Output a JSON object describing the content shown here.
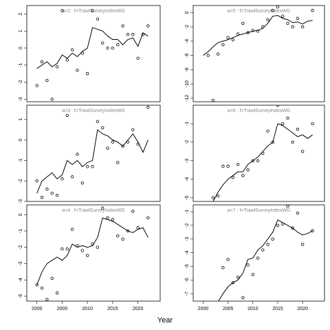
{
  "x_label": "Year",
  "chart_data": [
    {
      "type": "scatter",
      "title": "a=2 : f=TrawlSurveyIndexWG",
      "xlim": [
        1998,
        2024.4
      ],
      "ylim": [
        -3.15,
        2.5
      ],
      "yticks": [
        -3,
        -2,
        -1,
        0,
        1,
        2
      ],
      "grid": false,
      "points": {
        "x": [
          2000,
          2001,
          2002,
          2003,
          2004,
          2005,
          2006,
          2007,
          2008,
          2009,
          2010,
          2011,
          2012,
          2013,
          2014,
          2015,
          2016,
          2017,
          2018,
          2019,
          2020,
          2021,
          2022
        ],
        "values": [
          -2.2,
          -0.8,
          -1.9,
          -3.0,
          -1.1,
          2.2,
          -0.7,
          -0.1,
          -1.3,
          -0.3,
          -1.5,
          2.2,
          1.7,
          0.3,
          0.0,
          0.0,
          0.2,
          1.3,
          0.8,
          0.8,
          -0.6,
          0.8,
          1.3
        ]
      },
      "line": {
        "x": [
          2000,
          2001,
          2002,
          2003,
          2004,
          2005,
          2006,
          2007,
          2008,
          2009,
          2010,
          2011,
          2012,
          2013,
          2014,
          2015,
          2016,
          2017,
          2018,
          2019,
          2020,
          2021,
          2022
        ],
        "values": [
          -1.2,
          -1.0,
          -0.8,
          -1.1,
          -0.9,
          -0.4,
          -0.6,
          -0.3,
          -0.5,
          -0.2,
          0.0,
          1.2,
          1.1,
          1.0,
          0.7,
          0.5,
          0.5,
          0.2,
          0.5,
          0.6,
          0.1,
          0.9,
          0.7
        ]
      }
    },
    {
      "type": "scatter",
      "title": "a=5 : f=TrawlSurveyIndexWG",
      "xlim": [
        1998,
        2024.4
      ],
      "ylim": [
        -12.5,
        1
      ],
      "yticks": [
        -12,
        -10,
        -8,
        -6,
        -4,
        -2,
        0
      ],
      "grid": false,
      "points": {
        "x": [
          2001,
          2002,
          2003,
          2004,
          2005,
          2006,
          2007,
          2008,
          2009,
          2010,
          2011,
          2012,
          2013,
          2014,
          2015,
          2016,
          2017,
          2018,
          2019,
          2020,
          2022
        ],
        "values": [
          -6,
          -12.3,
          -5.8,
          -4.5,
          -3.5,
          -3.8,
          -3.0,
          -1.5,
          -2.8,
          -2.5,
          -2.6,
          -2.0,
          -1.0,
          0.3,
          0.8,
          -0.5,
          -1.5,
          -2.0,
          -0.8,
          -2.0,
          0.3
        ]
      },
      "line": {
        "x": [
          2000,
          2001,
          2002,
          2003,
          2004,
          2005,
          2006,
          2007,
          2008,
          2009,
          2010,
          2011,
          2012,
          2013,
          2014,
          2015,
          2016,
          2017,
          2018,
          2019,
          2020,
          2021,
          2022
        ],
        "values": [
          -6,
          -5.5,
          -4.8,
          -4.2,
          -4.0,
          -3.8,
          -3.5,
          -3.2,
          -3.0,
          -2.8,
          -2.6,
          -2.5,
          -2.2,
          -1.5,
          -0.5,
          -0.4,
          -0.8,
          -1.0,
          -1.4,
          -1.3,
          -1.6,
          -1.2,
          -1.1
        ]
      }
    },
    {
      "type": "scatter",
      "title": "a=3 : f=TrawlSurveyIndexWG",
      "xlim": [
        1998,
        2024.4
      ],
      "ylim": [
        -3.0,
        1.7
      ],
      "yticks": [
        -3,
        -2,
        -1,
        0,
        1
      ],
      "grid": false,
      "points": {
        "x": [
          2000,
          2001,
          2002,
          2003,
          2004,
          2005,
          2006,
          2007,
          2008,
          2009,
          2010,
          2011,
          2012,
          2013,
          2014,
          2015,
          2016,
          2017,
          2018,
          2019,
          2020,
          2022
        ],
        "values": [
          -2.0,
          -2.8,
          -2.4,
          -2.6,
          -2.7,
          -1.9,
          1.2,
          -1.8,
          -0.7,
          -2.1,
          -1.3,
          -1.3,
          0.9,
          0.6,
          -0.4,
          -0.1,
          -1.1,
          -0.3,
          -0.1,
          0.5,
          -0.2,
          1.6
        ]
      },
      "line": {
        "x": [
          2000,
          2001,
          2002,
          2003,
          2004,
          2005,
          2006,
          2007,
          2008,
          2009,
          2010,
          2011,
          2012,
          2013,
          2014,
          2015,
          2016,
          2017,
          2018,
          2019,
          2020,
          2021,
          2022
        ],
        "values": [
          -2.6,
          -2.0,
          -1.8,
          -1.6,
          -1.9,
          -1.7,
          -1.0,
          -1.2,
          -1.0,
          -1.3,
          -1.1,
          -1.0,
          0.5,
          0.3,
          0.2,
          0.0,
          -0.1,
          -0.3,
          0.0,
          0.3,
          -0.1,
          -0.6,
          0.0
        ]
      }
    },
    {
      "type": "scatter",
      "title": "a=6 : f=TrawlSurveyIndexWG",
      "xlim": [
        1998,
        2024.4
      ],
      "ylim": [
        -5.2,
        0
      ],
      "yticks": [
        -5,
        -4,
        -3,
        -2,
        -1
      ],
      "grid": false,
      "points": {
        "x": [
          2002,
          2003,
          2004,
          2005,
          2006,
          2007,
          2008,
          2009,
          2010,
          2011,
          2012,
          2013,
          2014,
          2015,
          2016,
          2017,
          2018,
          2019,
          2020,
          2022
        ],
        "values": [
          -5.0,
          -4.9,
          -3.3,
          -3.3,
          -3.9,
          -3.2,
          -3.8,
          -3.5,
          -3.0,
          -3.0,
          -2.6,
          -1.4,
          -2.0,
          0.0,
          -1.0,
          -0.7,
          -2.0,
          -1.3,
          -2.5,
          -1.0
        ]
      },
      "line": {
        "x": [
          2002,
          2003,
          2004,
          2005,
          2006,
          2007,
          2008,
          2009,
          2010,
          2011,
          2012,
          2013,
          2014,
          2015,
          2016,
          2017,
          2018,
          2019,
          2020,
          2021,
          2022
        ],
        "values": [
          -5.2,
          -4.7,
          -4.3,
          -4.0,
          -3.8,
          -3.6,
          -3.6,
          -3.2,
          -3.0,
          -2.8,
          -2.5,
          -2.2,
          -2.0,
          -1.0,
          -1.1,
          -1.3,
          -1.5,
          -1.7,
          -1.6,
          -1.8,
          -1.6
        ]
      }
    },
    {
      "type": "scatter",
      "title": "a=4 : f=TrawlSurveyIndexWG",
      "xlim": [
        1998,
        2024.4
      ],
      "ylim": [
        -5.3,
        0.6
      ],
      "yticks": [
        -5,
        -4,
        -3,
        -2,
        -1,
        0
      ],
      "xticks": [
        2000,
        2005,
        2010,
        2015,
        2020
      ],
      "grid": false,
      "points": {
        "x": [
          2000,
          2001,
          2002,
          2003,
          2004,
          2005,
          2006,
          2007,
          2008,
          2009,
          2010,
          2011,
          2012,
          2013,
          2014,
          2015,
          2016,
          2017,
          2018,
          2019,
          2020,
          2022
        ],
        "values": [
          -4.3,
          -4.5,
          -5.2,
          -3.9,
          -4.8,
          -2.1,
          -2.1,
          -0.9,
          -1.9,
          -2.2,
          -2.5,
          -1.8,
          -2.0,
          0.4,
          -0.2,
          -0.3,
          -1.3,
          -1.5,
          -1.0,
          0.2,
          -0.8,
          -0.2
        ]
      },
      "line": {
        "x": [
          2000,
          2001,
          2002,
          2003,
          2004,
          2005,
          2006,
          2007,
          2008,
          2009,
          2010,
          2011,
          2012,
          2013,
          2014,
          2015,
          2016,
          2017,
          2018,
          2019,
          2020,
          2021,
          2022
        ],
        "values": [
          -4.3,
          -3.5,
          -3.0,
          -2.8,
          -2.6,
          -2.8,
          -2.5,
          -1.8,
          -2.0,
          -1.9,
          -2.0,
          -1.9,
          -1.4,
          -0.2,
          -0.3,
          -0.4,
          -0.6,
          -0.8,
          -1.0,
          -1.1,
          -0.9,
          -0.8,
          -1.4
        ]
      }
    },
    {
      "type": "scatter",
      "title": "a=7 : f=TrawlSurveyIndexWG",
      "xlim": [
        1998,
        2024.4
      ],
      "ylim": [
        -7.55,
        -0.5
      ],
      "yticks": [
        -7,
        -6,
        -5,
        -4,
        -3,
        -2,
        -1
      ],
      "xticks": [
        2000,
        2005,
        2010,
        2015,
        2020
      ],
      "grid": false,
      "points": {
        "x": [
          2004,
          2005,
          2006,
          2007,
          2008,
          2009,
          2010,
          2011,
          2012,
          2013,
          2014,
          2015,
          2016,
          2017,
          2018,
          2019,
          2020,
          2022
        ],
        "values": [
          -5.1,
          -4.5,
          -6.2,
          -5.8,
          -7.3,
          -4.9,
          -5.6,
          -4.4,
          -3.8,
          -3.4,
          -3.0,
          -2.0,
          -1.9,
          -0.6,
          -2.2,
          -1.1,
          -3.4,
          -2.4
        ]
      },
      "line": {
        "x": [
          2003,
          2004,
          2005,
          2006,
          2007,
          2008,
          2009,
          2010,
          2011,
          2012,
          2013,
          2014,
          2015,
          2016,
          2017,
          2018,
          2019,
          2020,
          2021,
          2022
        ],
        "values": [
          -7.6,
          -7.0,
          -6.5,
          -6.2,
          -6.0,
          -5.5,
          -4.5,
          -4.4,
          -3.8,
          -3.5,
          -3.0,
          -2.5,
          -1.6,
          -1.8,
          -2.0,
          -2.2,
          -2.5,
          -2.7,
          -2.6,
          -2.4
        ]
      }
    }
  ]
}
